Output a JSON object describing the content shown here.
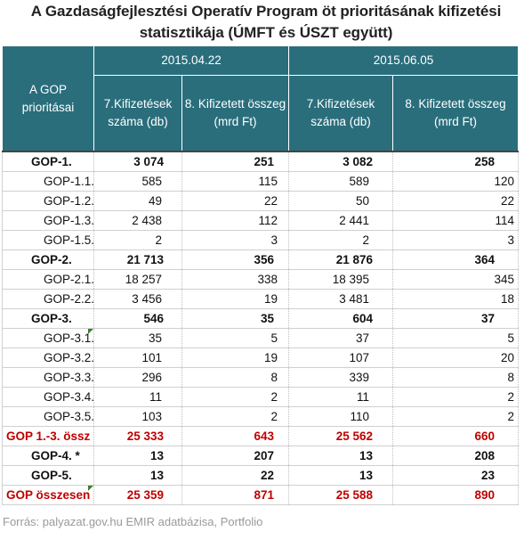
{
  "title": "A Gazdaságfejlesztési Operatív Program öt prioritásának kifizetési statisztikája (ÚMFT és ÚSZT együtt)",
  "headers": {
    "priority": "A GOP prioritásai",
    "date1": "2015.04.22",
    "date2": "2015.06.05",
    "col_count": "7.Kifizetések száma (db)",
    "col_amount": "8. Kifizetett összeg (mrd Ft)"
  },
  "rows": [
    {
      "name": "GOP-1.",
      "v1": "3 074",
      "v2": "251",
      "v3": "3 082",
      "v4": "258"
    },
    {
      "name": "GOP-1.1.",
      "v1": "585",
      "v2": "115",
      "v3": "589",
      "v4": "120"
    },
    {
      "name": "GOP-1.2.",
      "v1": "49",
      "v2": "22",
      "v3": "50",
      "v4": "22"
    },
    {
      "name": "GOP-1.3.",
      "v1": "2 438",
      "v2": "112",
      "v3": "2 441",
      "v4": "114"
    },
    {
      "name": "GOP-1.5.",
      "v1": "2",
      "v2": "3",
      "v3": "2",
      "v4": "3"
    },
    {
      "name": "GOP-2.",
      "v1": "21 713",
      "v2": "356",
      "v3": "21 876",
      "v4": "364"
    },
    {
      "name": "GOP-2.1.",
      "v1": "18 257",
      "v2": "338",
      "v3": "18 395",
      "v4": "345"
    },
    {
      "name": "GOP-2.2.",
      "v1": "3 456",
      "v2": "19",
      "v3": "3 481",
      "v4": "18"
    },
    {
      "name": "GOP-3.",
      "v1": "546",
      "v2": "35",
      "v3": "604",
      "v4": "37"
    },
    {
      "name": "GOP-3.1.",
      "v1": "35",
      "v2": "5",
      "v3": "37",
      "v4": "5"
    },
    {
      "name": "GOP-3.2.",
      "v1": "101",
      "v2": "19",
      "v3": "107",
      "v4": "20"
    },
    {
      "name": "GOP-3.3.",
      "v1": "296",
      "v2": "8",
      "v3": "339",
      "v4": "8"
    },
    {
      "name": "GOP-3.4.",
      "v1": "11",
      "v2": "2",
      "v3": "11",
      "v4": "2"
    },
    {
      "name": "GOP-3.5.",
      "v1": "103",
      "v2": "2",
      "v3": "110",
      "v4": "2"
    },
    {
      "name": "GOP 1.-3. össz",
      "v1": "25 333",
      "v2": "643",
      "v3": "25 562",
      "v4": "660"
    },
    {
      "name": "GOP-4. *",
      "v1": "13",
      "v2": "207",
      "v3": "13",
      "v4": "208"
    },
    {
      "name": "GOP-5.",
      "v1": "13",
      "v2": "22",
      "v3": "13",
      "v4": "23"
    },
    {
      "name": "GOP összesen",
      "v1": "25 359",
      "v2": "871",
      "v3": "25 588",
      "v4": "890"
    }
  ],
  "source": "Forrás: palyazat.gov.hu EMIR adatbázisa, Portfolio"
}
